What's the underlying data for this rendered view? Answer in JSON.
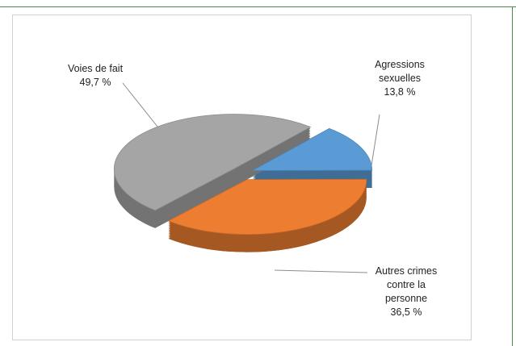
{
  "chart_data": {
    "type": "pie",
    "categories": [
      "Agressions sexuelles",
      "Autres crimes contre la personne",
      "Voies de fait"
    ],
    "values": [
      13.8,
      36.5,
      49.7
    ],
    "value_labels": [
      "13,8 %",
      "36,5 %",
      "49,7 %"
    ],
    "colors": [
      "#5b9bd5",
      "#ed7d31",
      "#a5a5a5"
    ]
  }
}
